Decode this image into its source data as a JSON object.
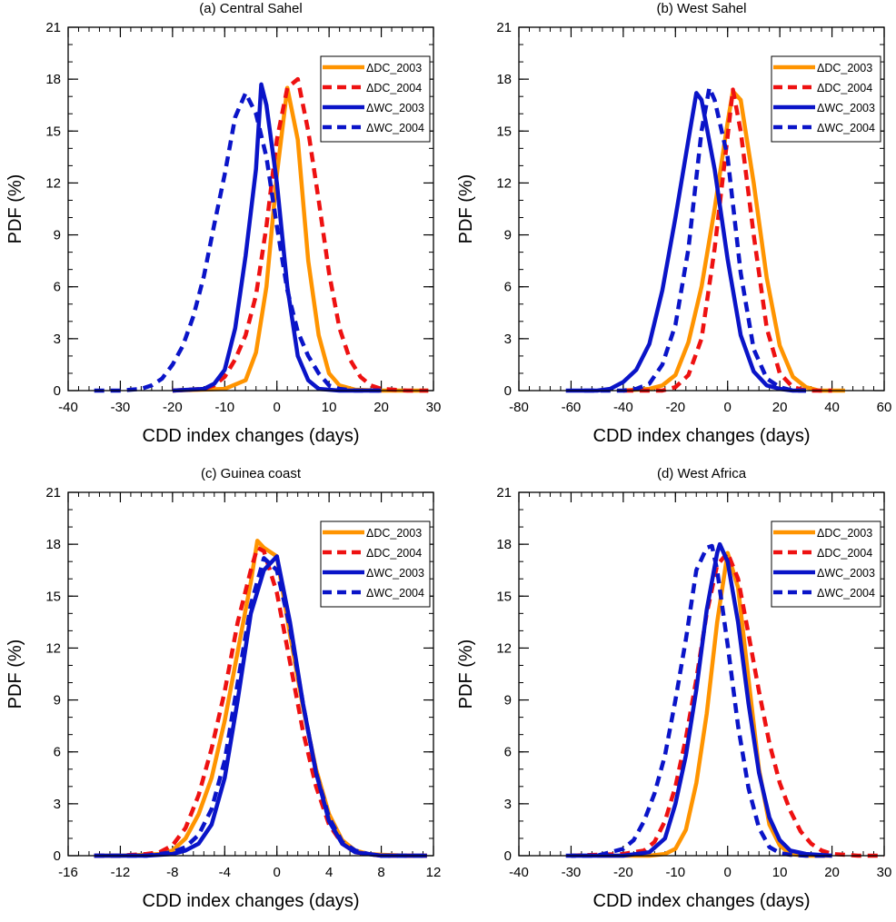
{
  "figure": {
    "colors": {
      "orange": "#FF9400",
      "red": "#EE1111",
      "blue": "#0A14C8"
    },
    "legend_entries": [
      {
        "label": "ΔDC_2003",
        "color": "#FF9400",
        "dashed": false
      },
      {
        "label": "ΔDC_2004",
        "color": "#EE1111",
        "dashed": true
      },
      {
        "label": "ΔWC_2003",
        "color": "#0A14C8",
        "dashed": false
      },
      {
        "label": "ΔWC_2004",
        "color": "#0A14C8",
        "dashed": true
      }
    ]
  },
  "chart_data": [
    {
      "type": "line",
      "title": "(a) Central Sahel",
      "xlabel": "CDD index changes  (days)",
      "ylabel": "PDF (%)",
      "xlim": [
        -40,
        30
      ],
      "ylim": [
        0,
        21
      ],
      "xticks": [
        -40,
        -30,
        -20,
        -10,
        0,
        10,
        20,
        30
      ],
      "yticks": [
        0,
        3,
        6,
        9,
        12,
        15,
        18,
        21
      ],
      "legend_position": "top-right",
      "series": [
        {
          "name": "ΔDC_2003",
          "x": [
            -20,
            -10,
            -6,
            -4,
            -2,
            0,
            2,
            4,
            6,
            8,
            10,
            12,
            15,
            20,
            29
          ],
          "y": [
            0,
            0.1,
            0.6,
            2.2,
            6,
            12.5,
            17.5,
            14.5,
            7.5,
            3.2,
            1,
            0.3,
            0.05,
            0,
            0
          ]
        },
        {
          "name": "ΔDC_2004",
          "x": [
            -20,
            -14,
            -12,
            -10,
            -8,
            -6,
            -4,
            -2,
            0,
            2,
            4,
            6,
            8,
            10,
            12,
            14,
            16,
            18,
            20,
            25,
            29
          ],
          "y": [
            0,
            0.1,
            0.3,
            0.8,
            1.8,
            3.2,
            5.5,
            9.5,
            14.5,
            17.5,
            18,
            15,
            11,
            6.8,
            3.6,
            1.8,
            0.8,
            0.3,
            0.1,
            0,
            0
          ]
        },
        {
          "name": "ΔWC_2003",
          "x": [
            -20,
            -14,
            -12,
            -10,
            -8,
            -6,
            -4,
            -3,
            -2,
            0,
            2,
            4,
            6,
            8,
            12,
            20
          ],
          "y": [
            0,
            0.1,
            0.4,
            1.2,
            3.6,
            7.8,
            12.8,
            17.7,
            16.5,
            12,
            6,
            2,
            0.6,
            0.1,
            0,
            0
          ]
        },
        {
          "name": "ΔWC_2004",
          "x": [
            -35,
            -30,
            -26,
            -24,
            -22,
            -20,
            -18,
            -16,
            -14,
            -12,
            -10,
            -8,
            -6,
            -4,
            -2,
            0,
            2,
            4,
            6,
            8,
            10,
            12,
            15,
            20
          ],
          "y": [
            0,
            0,
            0.1,
            0.3,
            0.7,
            1.5,
            2.6,
            4.3,
            6.6,
            9.6,
            12.5,
            15.8,
            17.2,
            16,
            13.5,
            9.5,
            5.8,
            3.4,
            2,
            1,
            0.3,
            0.1,
            0,
            0
          ]
        }
      ]
    },
    {
      "type": "line",
      "title": "(b) West Sahel",
      "xlabel": "CDD index changes (days)",
      "ylabel": "PDF (%)",
      "xlim": [
        -80,
        60
      ],
      "ylim": [
        0,
        21
      ],
      "xticks": [
        -80,
        -60,
        -40,
        -20,
        0,
        20,
        40,
        60
      ],
      "yticks": [
        0,
        3,
        6,
        9,
        12,
        15,
        18,
        21
      ],
      "legend_position": "top-right",
      "series": [
        {
          "name": "ΔDC_2003",
          "x": [
            -40,
            -30,
            -25,
            -20,
            -15,
            -10,
            -5,
            0,
            2,
            5,
            10,
            15,
            20,
            25,
            30,
            35,
            45
          ],
          "y": [
            0,
            0.1,
            0.3,
            0.9,
            2.8,
            6,
            10.5,
            15.5,
            17.3,
            16.8,
            12,
            6.5,
            2.6,
            0.8,
            0.2,
            0,
            0
          ]
        },
        {
          "name": "ΔDC_2004",
          "x": [
            -40,
            -25,
            -20,
            -15,
            -10,
            -5,
            0,
            2,
            5,
            10,
            15,
            20,
            25,
            30,
            40
          ],
          "y": [
            0,
            0,
            0.2,
            0.9,
            3,
            8.2,
            14.7,
            17.4,
            15,
            9,
            3.6,
            1,
            0.2,
            0,
            0
          ]
        },
        {
          "name": "ΔWC_2003",
          "x": [
            -62,
            -50,
            -45,
            -40,
            -35,
            -30,
            -25,
            -20,
            -15,
            -12,
            -10,
            -5,
            0,
            5,
            10,
            15,
            20,
            25,
            30
          ],
          "y": [
            0,
            0,
            0.1,
            0.5,
            1.2,
            2.7,
            5.8,
            10,
            14.5,
            17.2,
            16.8,
            12.8,
            7.6,
            3.2,
            1.1,
            0.3,
            0.1,
            0,
            0
          ]
        },
        {
          "name": "ΔWC_2004",
          "x": [
            -55,
            -40,
            -35,
            -30,
            -25,
            -20,
            -15,
            -10,
            -7,
            -5,
            0,
            5,
            10,
            15,
            20,
            25,
            30
          ],
          "y": [
            0,
            0,
            0.1,
            0.4,
            1.5,
            3.8,
            8.2,
            15,
            17.5,
            16.8,
            13.5,
            6.8,
            2.4,
            0.7,
            0.2,
            0,
            0
          ]
        }
      ]
    },
    {
      "type": "line",
      "title": "(c) Guinea coast",
      "xlabel": "CDD index changes (days)",
      "ylabel": "PDF (%)",
      "xlim": [
        -16,
        12
      ],
      "ylim": [
        0,
        21
      ],
      "xticks": [
        -16,
        -12,
        -8,
        -4,
        0,
        4,
        8,
        12
      ],
      "yticks": [
        0,
        3,
        6,
        9,
        12,
        15,
        18,
        21
      ],
      "legend_position": "top-right",
      "series": [
        {
          "name": "ΔDC_2003",
          "x": [
            -14,
            -12,
            -10,
            -9,
            -8,
            -7,
            -6,
            -5,
            -4,
            -3,
            -2,
            -1.5,
            -1,
            0,
            1,
            2,
            3,
            4,
            5,
            6,
            7,
            8,
            10,
            11.5
          ],
          "y": [
            0,
            0,
            0.05,
            0.1,
            0.3,
            1,
            2.4,
            4.5,
            7.8,
            11.8,
            15.8,
            18.2,
            17.8,
            17.3,
            12.8,
            8.6,
            5,
            2.4,
            0.9,
            0.3,
            0.1,
            0.05,
            0,
            0
          ]
        },
        {
          "name": "ΔDC_2004",
          "x": [
            -14,
            -12,
            -10,
            -9,
            -8,
            -7,
            -6,
            -5,
            -4,
            -3,
            -2,
            -1.5,
            -1,
            0,
            1,
            2,
            3,
            4,
            5,
            6,
            7,
            8,
            10,
            11.5
          ],
          "y": [
            0,
            0,
            0.1,
            0.2,
            0.6,
            1.6,
            3.5,
            6.2,
            9.5,
            13.5,
            16.5,
            17.8,
            17.6,
            15.2,
            11.2,
            7.2,
            4,
            1.8,
            0.7,
            0.2,
            0.1,
            0,
            0,
            0
          ]
        },
        {
          "name": "ΔWC_2003",
          "x": [
            -14,
            -10,
            -8,
            -7,
            -6,
            -5,
            -4,
            -3,
            -2,
            -1,
            0,
            1,
            2,
            3,
            4,
            5,
            6,
            8,
            11.5
          ],
          "y": [
            0,
            0,
            0.1,
            0.3,
            0.7,
            1.8,
            4.5,
            9,
            14,
            16.5,
            17.3,
            13.5,
            8.8,
            4.8,
            2,
            0.7,
            0.2,
            0,
            0
          ]
        },
        {
          "name": "ΔWC_2004",
          "x": [
            -14,
            -10,
            -8,
            -7,
            -6,
            -5,
            -4,
            -3,
            -2,
            -1,
            0,
            1,
            2,
            3,
            4,
            5,
            6,
            7,
            8,
            11.5
          ],
          "y": [
            0,
            0,
            0.2,
            0.5,
            1.2,
            2.7,
            5.5,
            10,
            14.5,
            17.2,
            16.5,
            13.2,
            8.8,
            4.8,
            2.2,
            0.8,
            0.3,
            0.1,
            0,
            0
          ]
        }
      ]
    },
    {
      "type": "line",
      "title": "(d) West Africa",
      "xlabel": "CDD index changes (days)",
      "ylabel": "PDF (%)",
      "xlim": [
        -40,
        30
      ],
      "ylim": [
        0,
        21
      ],
      "xticks": [
        -40,
        -30,
        -20,
        -10,
        0,
        10,
        20,
        30
      ],
      "yticks": [
        0,
        3,
        6,
        9,
        12,
        15,
        18,
        21
      ],
      "legend_position": "top-right",
      "series": [
        {
          "name": "ΔDC_2003",
          "x": [
            -25,
            -15,
            -12,
            -10,
            -8,
            -6,
            -4,
            -2,
            0,
            2,
            4,
            6,
            8,
            10,
            12,
            15,
            20
          ],
          "y": [
            0,
            0,
            0.1,
            0.4,
            1.5,
            4.2,
            8.2,
            13.5,
            17.5,
            15.5,
            10.2,
            5,
            1.8,
            0.6,
            0.1,
            0,
            0
          ]
        },
        {
          "name": "ΔDC_2004",
          "x": [
            -30,
            -20,
            -16,
            -14,
            -12,
            -10,
            -8,
            -6,
            -4,
            -2,
            0,
            2,
            4,
            6,
            8,
            10,
            12,
            14,
            16,
            18,
            20,
            25,
            30
          ],
          "y": [
            0,
            0.1,
            0.3,
            0.8,
            2,
            4,
            6.8,
            10.2,
            14,
            16.8,
            17.5,
            16,
            12.8,
            9.5,
            6.5,
            4.2,
            2.6,
            1.4,
            0.7,
            0.3,
            0.1,
            0,
            0
          ]
        },
        {
          "name": "ΔWC_2003",
          "x": [
            -30,
            -20,
            -15,
            -12,
            -10,
            -8,
            -6,
            -4,
            -2,
            -1.5,
            0,
            2,
            4,
            6,
            8,
            10,
            12,
            15,
            20
          ],
          "y": [
            0,
            0,
            0.2,
            1,
            3,
            5.8,
            9.6,
            14.2,
            17.5,
            18,
            17,
            13.5,
            8.8,
            4.8,
            2.2,
            0.9,
            0.3,
            0.1,
            0
          ]
        },
        {
          "name": "ΔWC_2004",
          "x": [
            -31,
            -25,
            -20,
            -18,
            -16,
            -14,
            -12,
            -10,
            -8,
            -6,
            -4,
            -3,
            -2,
            0,
            2,
            4,
            6,
            8,
            10,
            12,
            15,
            20
          ],
          "y": [
            0,
            0,
            0.4,
            0.9,
            2,
            3.6,
            5.8,
            9,
            12.5,
            16.5,
            17.8,
            17.9,
            16.5,
            12.2,
            7.5,
            3.9,
            1.6,
            0.5,
            0.15,
            0.05,
            0,
            0
          ]
        }
      ]
    }
  ]
}
